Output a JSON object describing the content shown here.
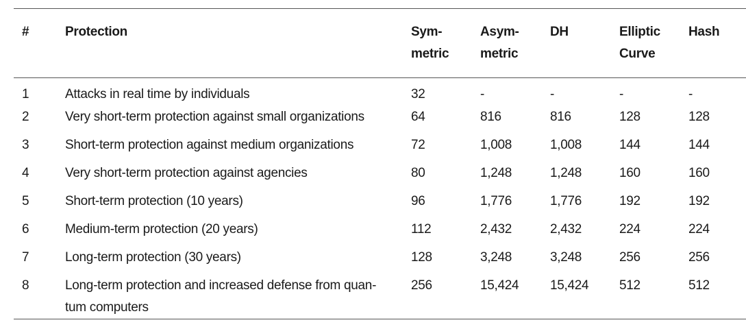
{
  "table": {
    "headers": {
      "num": "#",
      "protection": "Protection",
      "symmetric": [
        "Sym-",
        "metric"
      ],
      "asymmetric": [
        "Asym-",
        "metric"
      ],
      "dh": "DH",
      "elliptic": [
        "Elliptic",
        "Curve"
      ],
      "hash": "Hash"
    },
    "rows": [
      {
        "num": "1",
        "protection": "Attacks in real time by individuals",
        "symmetric": "32",
        "asymmetric": "-",
        "dh": "-",
        "elliptic": "-",
        "hash": "-"
      },
      {
        "num": "2",
        "protection": "Very short-term protection against small organizations",
        "symmetric": "64",
        "asymmetric": "816",
        "dh": "816",
        "elliptic": "128",
        "hash": "128"
      },
      {
        "num": "3",
        "protection": "Short-term protection against medium organizations",
        "symmetric": "72",
        "asymmetric": "1,008",
        "dh": "1,008",
        "elliptic": "144",
        "hash": "144"
      },
      {
        "num": "4",
        "protection": "Very short-term protection against agencies",
        "symmetric": "80",
        "asymmetric": "1,248",
        "dh": "1,248",
        "elliptic": "160",
        "hash": "160"
      },
      {
        "num": "5",
        "protection": "Short-term protection (10 years)",
        "symmetric": "96",
        "asymmetric": "1,776",
        "dh": "1,776",
        "elliptic": "192",
        "hash": "192"
      },
      {
        "num": "6",
        "protection": "Medium-term protection (20 years)",
        "symmetric": "112",
        "asymmetric": "2,432",
        "dh": "2,432",
        "elliptic": "224",
        "hash": "224"
      },
      {
        "num": "7",
        "protection": "Long-term protection (30 years)",
        "symmetric": "128",
        "asymmetric": "3,248",
        "dh": "3,248",
        "elliptic": "256",
        "hash": "256"
      },
      {
        "num": "8",
        "protection": "Long-term protection and increased defense from quan-tum computers",
        "symmetric": "256",
        "asymmetric": "15,424",
        "dh": "15,424",
        "elliptic": "512",
        "hash": "512"
      }
    ]
  }
}
